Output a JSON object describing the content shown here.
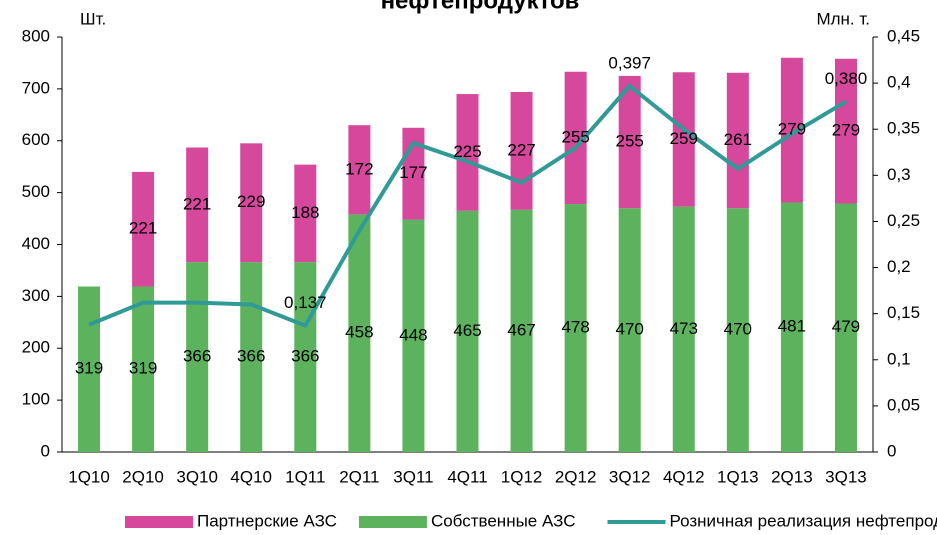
{
  "chart_data": {
    "type": "bar-line",
    "title": "нефтепродуктов",
    "ylabel": "Шт.",
    "y2label": "Млн. т.",
    "categories": [
      "1Q10",
      "2Q10",
      "3Q10",
      "4Q10",
      "1Q11",
      "2Q11",
      "3Q11",
      "4Q11",
      "1Q12",
      "2Q12",
      "3Q12",
      "4Q12",
      "1Q13",
      "2Q13",
      "3Q13"
    ],
    "series": [
      {
        "name": "Партнерские АЗС",
        "type": "bar",
        "color": "#d5489b",
        "values": [
          null,
          221,
          221,
          229,
          188,
          172,
          177,
          225,
          227,
          255,
          255,
          259,
          261,
          279,
          279
        ]
      },
      {
        "name": "Собственные АЗС",
        "type": "bar",
        "color": "#5db35d",
        "values": [
          319,
          319,
          366,
          366,
          366,
          458,
          448,
          465,
          467,
          478,
          470,
          473,
          470,
          481,
          479
        ]
      },
      {
        "name": "Розничная реализация нефтепродуктов",
        "type": "line",
        "axis": "y2",
        "color": "#2f9a96",
        "values": [
          0.138,
          0.162,
          0.162,
          0.16,
          0.137,
          0.24,
          0.335,
          0.315,
          0.292,
          0.33,
          0.397,
          0.35,
          0.307,
          0.345,
          0.38
        ],
        "value_labels": [
          null,
          null,
          null,
          null,
          "0,137",
          null,
          null,
          null,
          null,
          null,
          "0,397",
          null,
          null,
          null,
          "0,380"
        ]
      }
    ],
    "ylim": [
      0,
      800
    ],
    "yticks": [
      0,
      100,
      200,
      300,
      400,
      500,
      600,
      700,
      800
    ],
    "y2lim": [
      0,
      0.45
    ],
    "y2ticks": [
      0,
      {
        "value": 0.05,
        "label": "0,05"
      },
      {
        "value": 0.1,
        "label": "0,1"
      },
      {
        "value": 0.15,
        "label": "0,15"
      },
      {
        "value": 0.2,
        "label": "0,2"
      },
      {
        "value": 0.25,
        "label": "0,25"
      },
      {
        "value": 0.3,
        "label": "0,3"
      },
      {
        "value": 0.35,
        "label": "0,35"
      },
      {
        "value": 0.4,
        "label": "0,4"
      },
      {
        "value": 0.45,
        "label": "0,45"
      }
    ],
    "legend": "bottom"
  }
}
